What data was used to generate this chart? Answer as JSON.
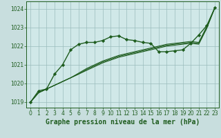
{
  "background_color": "#c8dede",
  "plot_bg_color": "#d0e8e8",
  "grid_color": "#9abcbc",
  "line_color": "#1e5c1e",
  "title": "Graphe pression niveau de la mer (hPa)",
  "xlim": [
    -0.5,
    23.5
  ],
  "ylim": [
    1018.7,
    1024.4
  ],
  "yticks": [
    1019,
    1020,
    1021,
    1022,
    1023,
    1024
  ],
  "xticks": [
    0,
    1,
    2,
    3,
    4,
    5,
    6,
    7,
    8,
    9,
    10,
    11,
    12,
    13,
    14,
    15,
    16,
    17,
    18,
    19,
    20,
    21,
    22,
    23
  ],
  "series_with_markers": [
    1019.0,
    1019.6,
    1019.7,
    1020.5,
    1021.0,
    1021.8,
    1022.1,
    1022.2,
    1022.2,
    1022.3,
    1022.5,
    1022.55,
    1022.35,
    1022.3,
    1022.2,
    1022.15,
    1021.7,
    1021.7,
    1021.75,
    1021.8,
    1022.15,
    1022.6,
    1023.1,
    1024.05
  ],
  "series_plain": [
    [
      1019.0,
      1019.5,
      1019.7,
      1019.9,
      1020.1,
      1020.3,
      1020.55,
      1020.8,
      1021.0,
      1021.2,
      1021.35,
      1021.5,
      1021.6,
      1021.7,
      1021.8,
      1021.9,
      1022.0,
      1022.1,
      1022.15,
      1022.2,
      1022.25,
      1022.2,
      1023.05,
      1024.05
    ],
    [
      1019.0,
      1019.5,
      1019.7,
      1019.9,
      1020.1,
      1020.3,
      1020.5,
      1020.75,
      1020.95,
      1021.15,
      1021.3,
      1021.45,
      1021.55,
      1021.65,
      1021.75,
      1021.85,
      1021.95,
      1022.05,
      1022.1,
      1022.15,
      1022.2,
      1022.15,
      1023.0,
      1024.05
    ],
    [
      1019.0,
      1019.5,
      1019.7,
      1019.9,
      1020.1,
      1020.3,
      1020.5,
      1020.7,
      1020.9,
      1021.1,
      1021.25,
      1021.4,
      1021.5,
      1021.6,
      1021.7,
      1021.8,
      1021.9,
      1022.0,
      1022.05,
      1022.1,
      1022.15,
      1022.1,
      1022.95,
      1024.05
    ]
  ],
  "title_fontsize": 7,
  "tick_fontsize": 5.5,
  "linewidth_marker": 1.0,
  "linewidth_plain": 0.8,
  "markersize": 2.2
}
